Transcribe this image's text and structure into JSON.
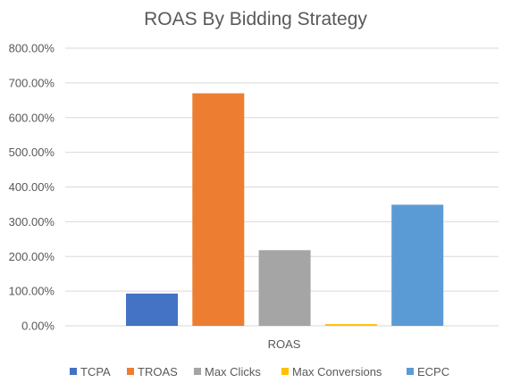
{
  "chart_data": {
    "type": "bar",
    "title": "ROAS By Bidding Strategy",
    "categories": [
      "ROAS"
    ],
    "series": [
      {
        "name": "TCPA",
        "values": [
          93
        ],
        "color": "#4472C4"
      },
      {
        "name": "TROAS",
        "values": [
          670
        ],
        "color": "#ED7D31"
      },
      {
        "name": "Max Clicks",
        "values": [
          218
        ],
        "color": "#A5A5A5"
      },
      {
        "name": "Max Conversions",
        "values": [
          5
        ],
        "color": "#FFC000"
      },
      {
        "name": "ECPC",
        "values": [
          349
        ],
        "color": "#5B9BD5"
      }
    ],
    "y_ticks": [
      "0.00%",
      "100.00%",
      "200.00%",
      "300.00%",
      "400.00%",
      "500.00%",
      "600.00%",
      "700.00%",
      "800.00%"
    ],
    "ylim": [
      0,
      800
    ],
    "y_unit": "percent",
    "grid": true,
    "legend_position": "bottom",
    "xlabel": "",
    "ylabel": ""
  }
}
